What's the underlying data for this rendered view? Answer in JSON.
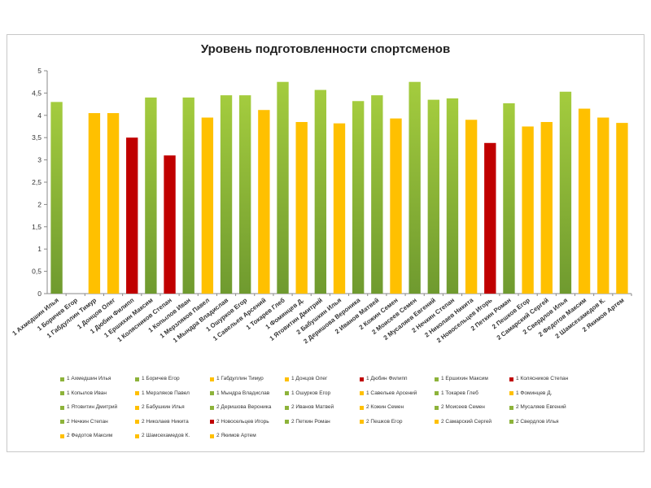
{
  "chart_data": {
    "type": "bar",
    "title": "Уровень подготовленности спортсменов",
    "ylim": [
      0,
      5
    ],
    "yticks": [
      "0",
      "0,5",
      "1",
      "1,5",
      "2",
      "2,5",
      "3",
      "3,5",
      "4",
      "4,5",
      "5"
    ],
    "grid": false,
    "legend_position": "bottom",
    "colors": {
      "green": "#8db33a",
      "yellow": "#ffc000",
      "red": "#c00000"
    },
    "categories": [
      "1 Ахмедшин Илья",
      "1 Боричев Егор",
      "1 Габдуллин Тимур",
      "1 Донцов Олег",
      "1 Дюбин Филипп",
      "1 Ершихин Максим",
      "1 Колясников Степан",
      "1 Копылов Иван",
      "1 Мерзляков Павел",
      "1 Мындра Владислав",
      "1 Ошурков Егор",
      "1 Савельев Арсений",
      "1 Токарев Глеб",
      "1 Фоминцев Д.",
      "1 Ятовитин Дмитрий",
      "2 Бабушкин Илья",
      "2 Деришова Вероника",
      "2 Иванов Матвей",
      "2 Кожин Семен",
      "2 Моисеев Семен",
      "2 Мусаляев Евгений",
      "2 Нечкин Степан",
      "2 Николаев Никита",
      "2 Новосельцев Игорь",
      "2 Петкин Роман",
      "2 Пешков Егор",
      "2 Самарский Сергей",
      "2 Свердлов Илья",
      "2 Федотов Максим",
      "2 Шамсехамедов К.",
      "2 Якимов Артем"
    ],
    "values": [
      4.3,
      0,
      4.05,
      4.05,
      3.5,
      4.4,
      3.1,
      4.4,
      3.95,
      4.45,
      4.45,
      4.12,
      4.75,
      3.85,
      4.57,
      3.82,
      4.32,
      4.45,
      3.93,
      4.75,
      4.35,
      4.38,
      3.9,
      3.38,
      4.27,
      3.75,
      3.85,
      4.53,
      4.15,
      3.95,
      3.83
    ],
    "bar_colors": [
      "green",
      "green",
      "yellow",
      "yellow",
      "red",
      "green",
      "red",
      "green",
      "yellow",
      "green",
      "green",
      "yellow",
      "green",
      "yellow",
      "green",
      "yellow",
      "green",
      "green",
      "yellow",
      "green",
      "green",
      "green",
      "yellow",
      "red",
      "green",
      "yellow",
      "yellow",
      "green",
      "yellow",
      "yellow",
      "yellow"
    ],
    "legend_entries": [
      "1 Ахмедшин Илья",
      "1 Боричев Егор",
      "1 Габдуллин Тимур",
      "1 Донцов Олег",
      "1 Дюбин Филипп",
      "1 Ершихин Максим",
      "1 Колясников Степан",
      "1 Копылов Иван",
      "1 Мерзляков Павел",
      "1 Мындра Владислав",
      "1 Ошурков Егор",
      "1 Савельев Арсений",
      "1 Токарев Глеб",
      "1 Фоминцев Д.",
      "1 Ятовитин Дмитрий",
      "2 Бабушкин Илья",
      "2 Деришова Вероника",
      "2 Иванов Матвей",
      "2 Кожин Семен",
      "2 Моисеев Семен",
      "2 Мусаляев Евгений",
      "2 Нечкин Степан",
      "2 Николаев Никита",
      "2 Новосельцев Игорь",
      "2 Петкин Роман",
      "2 Пешков Егор",
      "2 Самарский Сергей",
      "2 Свердлов Илья",
      "2 Федотов Максим",
      "2 Шамсехамедов К.",
      "2 Якимов Артем"
    ]
  }
}
